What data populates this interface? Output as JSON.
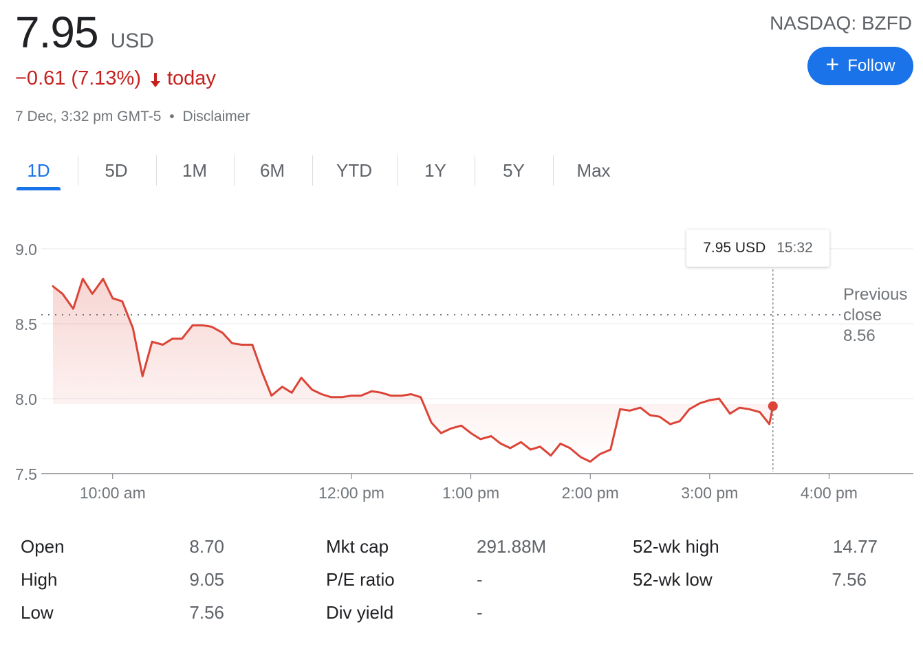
{
  "quote": {
    "price": "7.95",
    "currency": "USD",
    "change": "−0.61 (7.13%)",
    "direction_icon": "down-arrow-icon",
    "period": "today",
    "timestamp": "7 Dec, 3:32 pm GMT-5",
    "separator": "•",
    "disclaimer": "Disclaimer",
    "exchange": "NASDAQ: BZFD",
    "follow_label": "Follow",
    "follow_icon": "plus-icon"
  },
  "colors": {
    "accent": "#1a73e8",
    "negative": "#c5221f",
    "line": "#db4437",
    "grid": "#e8eaed"
  },
  "tabs": [
    {
      "label": "1D",
      "active": true
    },
    {
      "label": "5D",
      "active": false
    },
    {
      "label": "1M",
      "active": false
    },
    {
      "label": "6M",
      "active": false
    },
    {
      "label": "YTD",
      "active": false
    },
    {
      "label": "1Y",
      "active": false
    },
    {
      "label": "5Y",
      "active": false
    },
    {
      "label": "Max",
      "active": false
    }
  ],
  "tooltip": {
    "price": "7.95 USD",
    "time": "15:32"
  },
  "previous_close": {
    "line1": "Previous",
    "line2": "close",
    "value": "8.56"
  },
  "chart_data": {
    "type": "line",
    "ylim": [
      7.5,
      9.0
    ],
    "y_ticks": [
      "9.0",
      "8.5",
      "8.0",
      "7.5"
    ],
    "x_ticks": [
      "10:00 am",
      "12:00 pm",
      "1:00 pm",
      "2:00 pm",
      "3:00 pm",
      "4:00 pm"
    ],
    "x_tick_hours": [
      10,
      12,
      13,
      14,
      15,
      16
    ],
    "xlim_hours": [
      9.5,
      16.7
    ],
    "previous_close": 8.56,
    "last": {
      "x": 15.53,
      "y": 7.95
    },
    "series": [
      {
        "x": [
          9.5,
          9.58,
          9.67,
          9.75,
          9.83,
          9.92,
          10.0,
          10.08,
          10.17,
          10.25,
          10.33,
          10.42,
          10.5,
          10.58,
          10.67,
          10.75,
          10.83,
          10.92,
          11.0,
          11.08,
          11.17,
          11.25,
          11.33,
          11.42,
          11.5,
          11.58,
          11.67,
          11.75,
          11.83,
          11.92,
          12.0,
          12.08,
          12.17,
          12.25,
          12.33,
          12.42,
          12.5,
          12.58,
          12.67,
          12.75,
          12.83,
          12.92,
          13.0,
          13.08,
          13.17,
          13.25,
          13.33,
          13.42,
          13.5,
          13.58,
          13.67,
          13.75,
          13.83,
          13.92,
          14.0,
          14.08,
          14.17,
          14.25,
          14.33,
          14.42,
          14.5,
          14.58,
          14.67,
          14.75,
          14.83,
          14.92,
          15.0,
          15.08,
          15.17,
          15.25,
          15.33,
          15.42,
          15.5,
          15.53
        ],
        "y": [
          8.75,
          8.7,
          8.6,
          8.8,
          8.7,
          8.8,
          8.67,
          8.65,
          8.47,
          8.15,
          8.38,
          8.36,
          8.4,
          8.4,
          8.49,
          8.49,
          8.48,
          8.44,
          8.37,
          8.36,
          8.36,
          8.18,
          8.02,
          8.08,
          8.04,
          8.14,
          8.06,
          8.03,
          8.01,
          8.01,
          8.02,
          8.02,
          8.05,
          8.04,
          8.02,
          8.02,
          8.03,
          8.01,
          7.84,
          7.77,
          7.8,
          7.82,
          7.77,
          7.73,
          7.75,
          7.7,
          7.67,
          7.71,
          7.66,
          7.68,
          7.62,
          7.7,
          7.67,
          7.61,
          7.58,
          7.63,
          7.66,
          7.93,
          7.92,
          7.94,
          7.89,
          7.88,
          7.83,
          7.85,
          7.93,
          7.97,
          7.99,
          8.0,
          7.9,
          7.94,
          7.93,
          7.91,
          7.83,
          7.95
        ]
      }
    ]
  },
  "stats": [
    {
      "label": "Open",
      "value": "8.70"
    },
    {
      "label": "High",
      "value": "9.05"
    },
    {
      "label": "Low",
      "value": "7.56"
    },
    {
      "label": "Mkt cap",
      "value": "291.88M"
    },
    {
      "label": "P/E ratio",
      "value": "-"
    },
    {
      "label": "Div yield",
      "value": "-"
    },
    {
      "label": "52-wk high",
      "value": "14.77"
    },
    {
      "label": "52-wk low",
      "value": "7.56"
    }
  ]
}
